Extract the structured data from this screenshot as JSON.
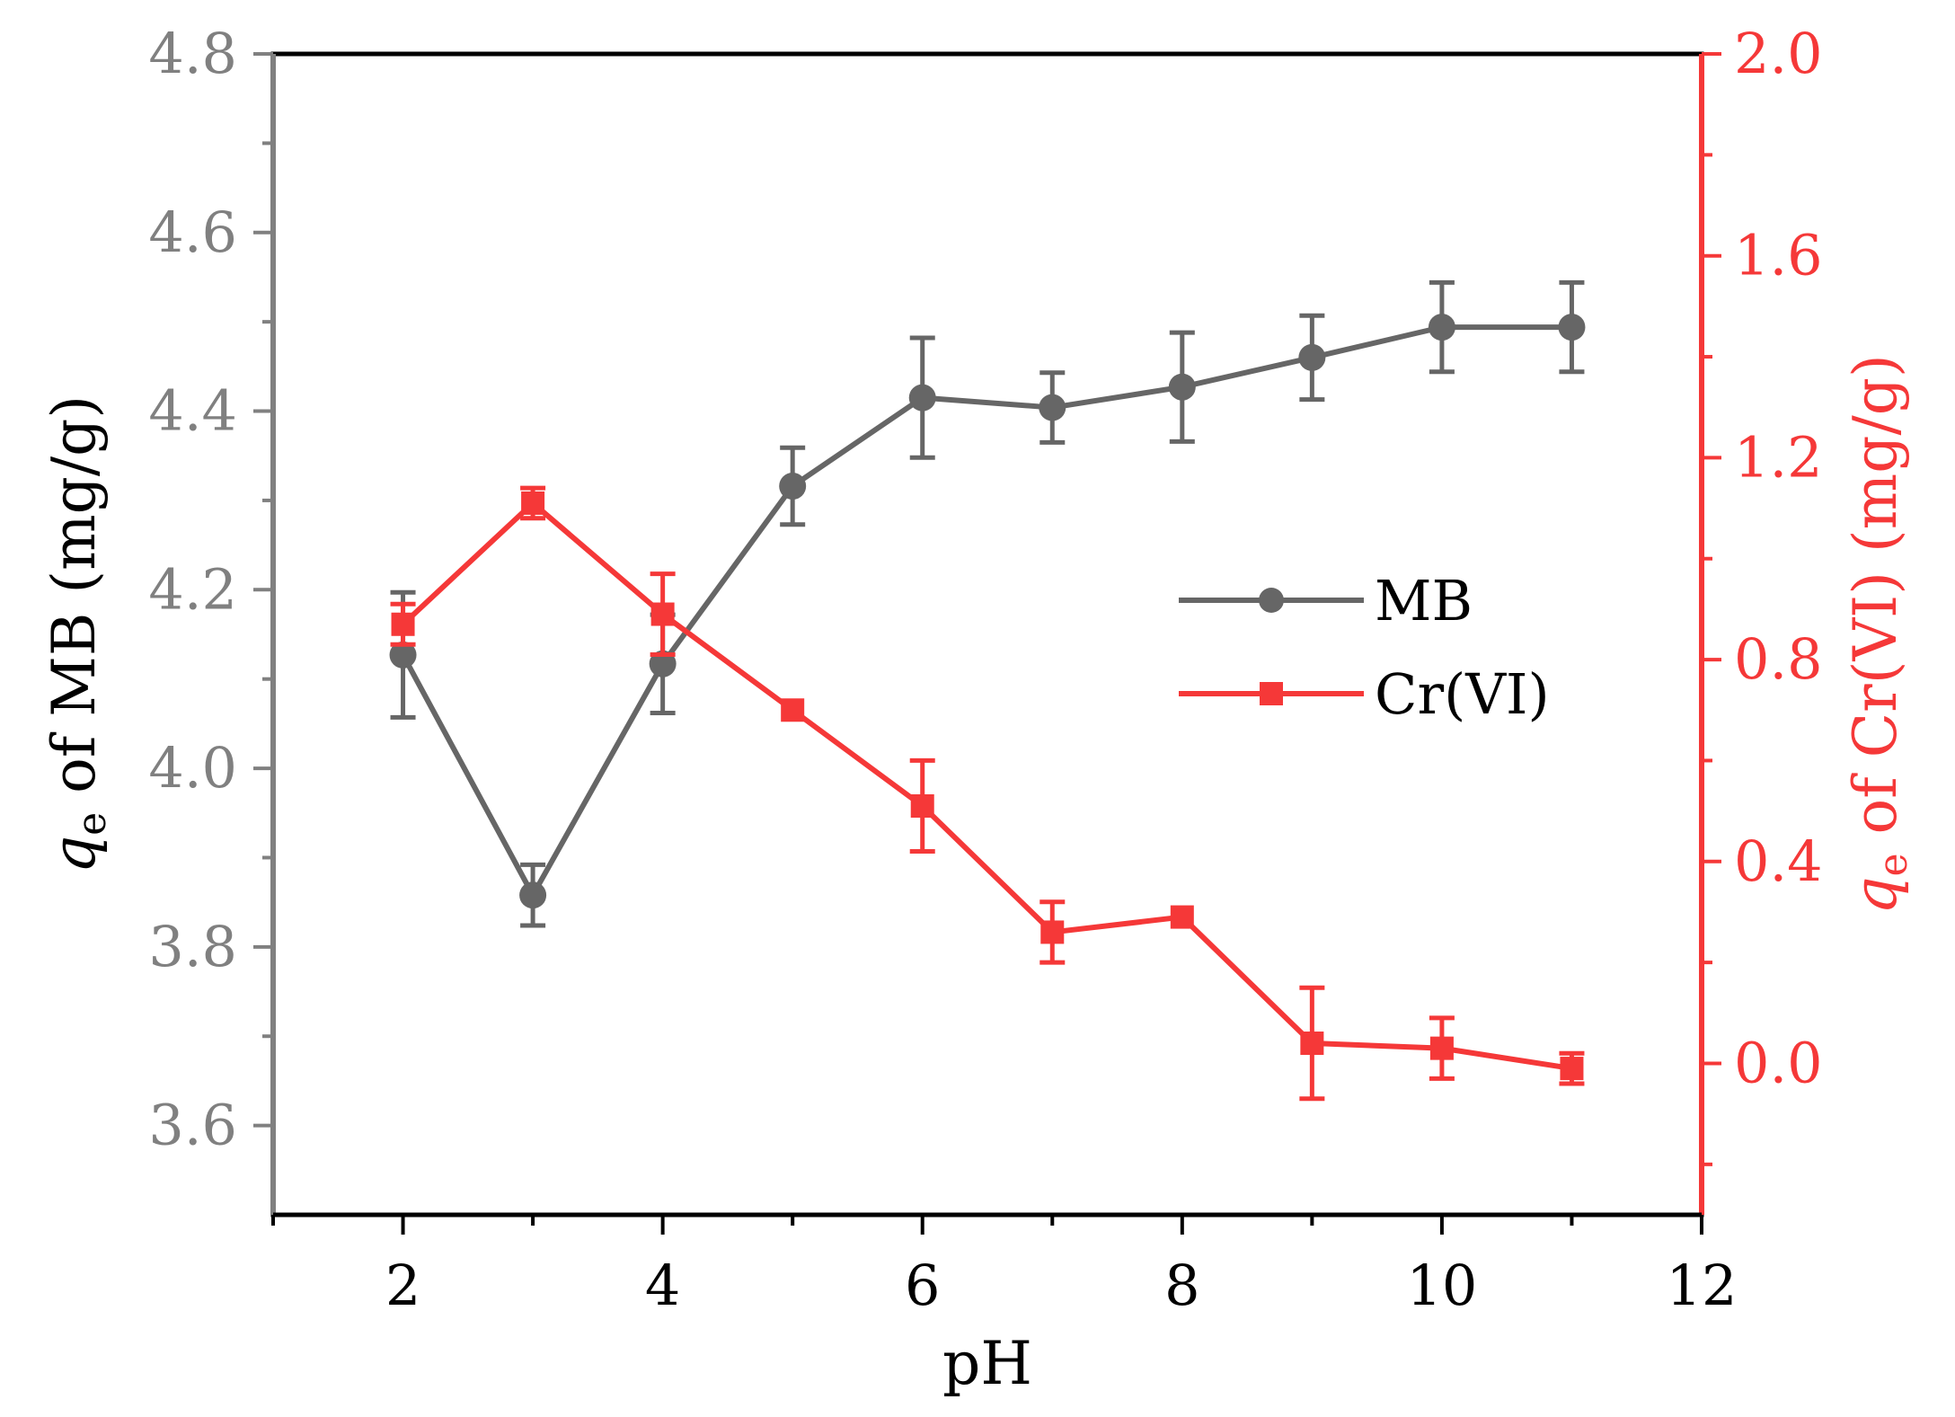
{
  "chart_data": {
    "type": "line",
    "title": "",
    "xlabel": "pH",
    "ylabel_left": {
      "symbol": "q",
      "subscript": "e",
      "text": " of MB (mg/g)"
    },
    "ylabel_right": {
      "symbol": "q",
      "subscript": "e",
      "text": " of Cr(VI) (mg/g)"
    },
    "xlim": [
      1,
      12
    ],
    "ylim_left": [
      3.5,
      4.8
    ],
    "ylim_right": [
      -0.3,
      2.0
    ],
    "x_ticks": [
      2,
      4,
      6,
      8,
      10,
      12
    ],
    "x_tick_labels": [
      "2",
      "4",
      "6",
      "8",
      "10",
      "12"
    ],
    "y_left_ticks": [
      3.6,
      3.8,
      4.0,
      4.2,
      4.4,
      4.6,
      4.8
    ],
    "y_left_tick_labels": [
      "3.6",
      "3.8",
      "4.0",
      "4.2",
      "4.4",
      "4.6",
      "4.8"
    ],
    "y_right_ticks": [
      0.0,
      0.4,
      0.8,
      1.2,
      1.6,
      2.0
    ],
    "y_right_tick_labels": [
      "0.0",
      "0.4",
      "0.8",
      "1.2",
      "1.6",
      "2.0"
    ],
    "series": [
      {
        "name": "MB",
        "axis": "left",
        "color": "#666666",
        "marker": "circle",
        "x": [
          2,
          3,
          4,
          5,
          6,
          7,
          8,
          9,
          10,
          11
        ],
        "values": [
          4.127,
          3.858,
          4.117,
          4.316,
          4.415,
          4.404,
          4.427,
          4.46,
          4.494,
          4.494
        ],
        "error": [
          0.07,
          0.034,
          0.055,
          0.043,
          0.067,
          0.039,
          0.061,
          0.047,
          0.05,
          0.05
        ]
      },
      {
        "name": "Cr(VI)",
        "axis": "right",
        "color": "#f53838",
        "marker": "square",
        "x": [
          2,
          3,
          4,
          5,
          6,
          7,
          8,
          9,
          10,
          11
        ],
        "values": [
          0.87,
          1.11,
          0.89,
          0.7,
          0.51,
          0.26,
          0.29,
          0.04,
          0.03,
          -0.01
        ],
        "error": [
          0.04,
          0.03,
          0.08,
          0.0,
          0.09,
          0.06,
          0.0,
          0.11,
          0.06,
          0.03
        ]
      }
    ],
    "legend": {
      "position": "center-right",
      "entries": [
        "MB",
        "Cr(VI)"
      ]
    },
    "colors": {
      "frame": "#000000",
      "left_axis": "#808080",
      "right_axis": "#f53838",
      "mb_series": "#666666",
      "cr_series": "#f53838"
    }
  }
}
